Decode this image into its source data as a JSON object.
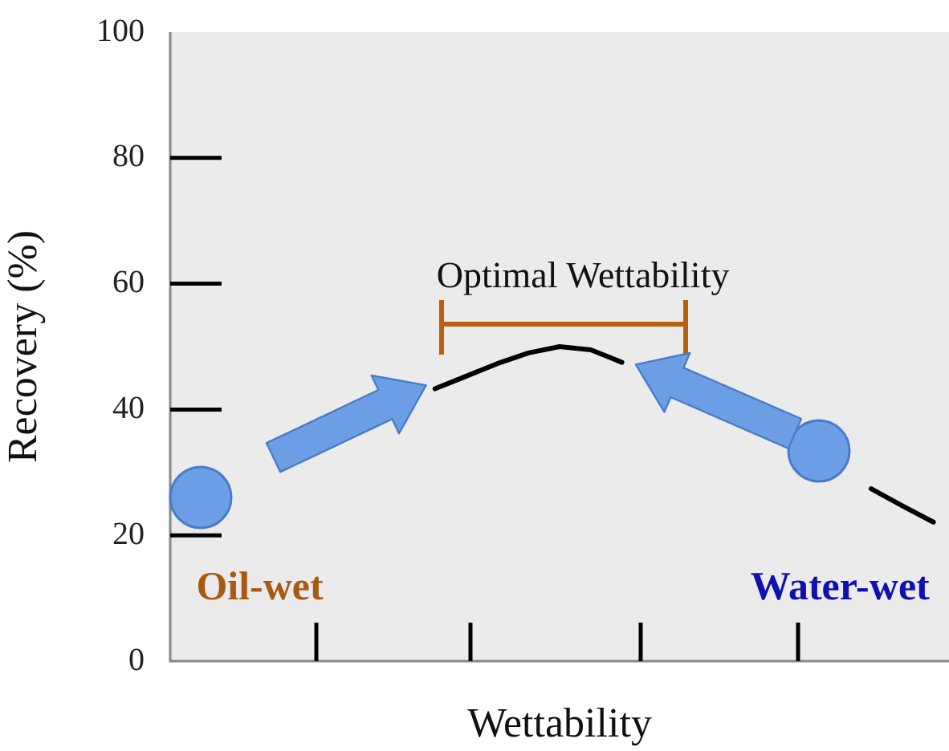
{
  "chart_data": {
    "type": "line",
    "xlabel": "Wettability",
    "ylabel": "Recovery (%)",
    "categories": [
      null,
      null,
      null,
      null,
      null,
      null,
      null,
      null,
      null,
      null,
      null,
      null,
      null,
      null,
      null,
      null,
      null,
      null,
      null,
      null,
      null,
      null,
      null,
      null,
      null
    ],
    "series": [
      {
        "color": "#000000",
        "values": [
          null,
          null,
          null,
          null,
          null,
          null,
          null,
          null,
          43.3,
          45.3,
          47.3,
          49,
          50,
          49.5,
          47.5,
          null,
          null,
          null,
          null,
          null,
          null,
          null,
          27.4,
          24.7,
          22.1
        ]
      }
    ],
    "ylim": [
      0,
      100
    ],
    "yticks": [
      0,
      20,
      40,
      60,
      80,
      100
    ],
    "tick_labels": "y",
    "marker": "none",
    "line_style": "solid",
    "legend": false,
    "grid": false,
    "annotations": [
      "Optimal Wettability",
      "Oil-wet",
      "Water-wet"
    ]
  }
}
